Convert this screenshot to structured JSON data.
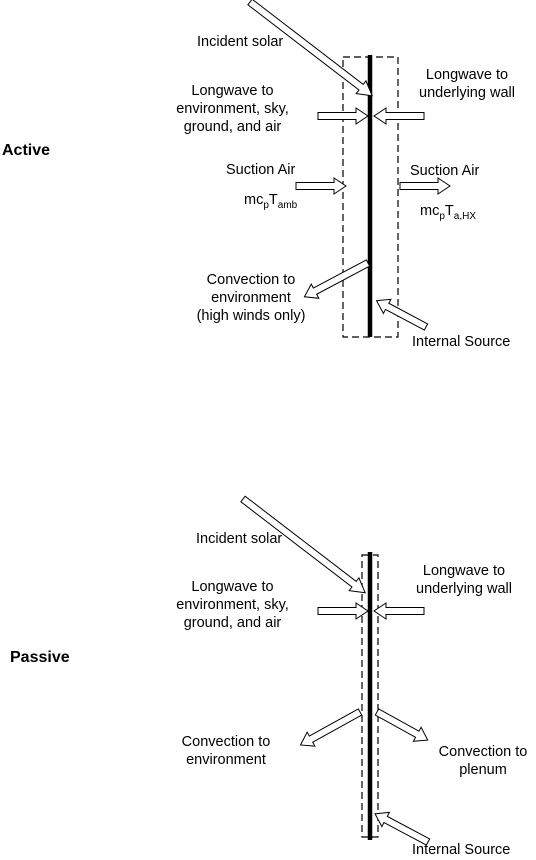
{
  "active": {
    "heading": "Active",
    "incident_solar": "Incident solar",
    "longwave_env": [
      "Longwave to",
      "environment, sky,",
      "ground, and air"
    ],
    "longwave_wall": [
      "Longwave to",
      "underlying wall"
    ],
    "suction_in": "Suction Air",
    "suction_out": "Suction Air",
    "mc_in": {
      "base": "mc",
      "sub1": "p",
      "mid": "T",
      "sub2": "amb"
    },
    "mc_out": {
      "base": "mc",
      "sub1": "p",
      "mid": "T",
      "sub2": "a,HX"
    },
    "convection_env": [
      "Convection to",
      "environment",
      "(high winds only)"
    ],
    "internal_source": "Internal Source"
  },
  "passive": {
    "heading": "Passive",
    "incident_solar": "Incident solar",
    "longwave_env": [
      "Longwave to",
      "environment, sky,",
      "ground, and air"
    ],
    "longwave_wall": [
      "Longwave to",
      "underlying wall"
    ],
    "convection_env": [
      "Convection to",
      "environment"
    ],
    "convection_plenum": [
      "Convection to",
      "plenum"
    ],
    "internal_source": "Internal Source"
  }
}
